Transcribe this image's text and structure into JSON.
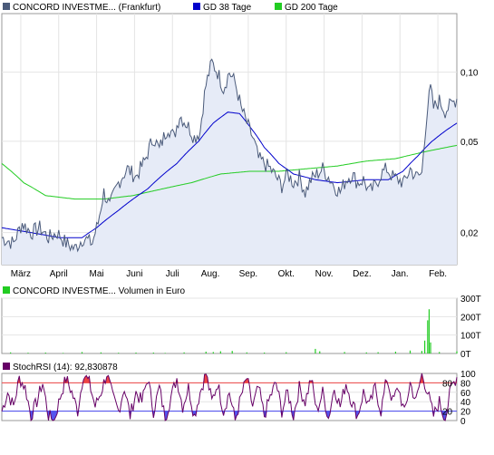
{
  "chart_data": [
    {
      "type": "line",
      "legend": [
        {
          "label": "CONCORD INVESTME... (Frankfurt)",
          "color": "#4a5a7a"
        },
        {
          "label": "GD 38 Tage",
          "color": "#0000cc"
        },
        {
          "label": "GD 200 Tage",
          "color": "#22cc22"
        }
      ],
      "months": [
        "März",
        "April",
        "Mai",
        "Juni",
        "Juli",
        "Aug.",
        "Sep.",
        "Okt.",
        "Nov.",
        "Dez.",
        "Jan.",
        "Feb."
      ],
      "y_ticks": [
        "0,10",
        "0,05",
        "0,02"
      ],
      "y_tick_values": [
        0.1,
        0.05,
        0.02
      ],
      "y_scale": "log",
      "ylim": [
        0.0145,
        0.18
      ],
      "grid": true,
      "legend_position": "top",
      "series": [
        {
          "name": "CONCORD INVESTME... (Frankfurt)",
          "color": "#4a5a7a",
          "anchors": [
            [
              0,
              0.019
            ],
            [
              8,
              0.018
            ],
            [
              14,
              0.022
            ],
            [
              20,
              0.02
            ],
            [
              26,
              0.021
            ],
            [
              32,
              0.019
            ],
            [
              38,
              0.02
            ],
            [
              44,
              0.018
            ],
            [
              50,
              0.017
            ],
            [
              56,
              0.019
            ],
            [
              62,
              0.018
            ],
            [
              66,
              0.022
            ],
            [
              70,
              0.03
            ],
            [
              74,
              0.026
            ],
            [
              80,
              0.033
            ],
            [
              86,
              0.038
            ],
            [
              92,
              0.035
            ],
            [
              98,
              0.041
            ],
            [
              104,
              0.052
            ],
            [
              108,
              0.046
            ],
            [
              114,
              0.058
            ],
            [
              118,
              0.052
            ],
            [
              122,
              0.065
            ],
            [
              128,
              0.058
            ],
            [
              132,
              0.052
            ],
            [
              136,
              0.055
            ],
            [
              140,
              0.088
            ],
            [
              144,
              0.11
            ],
            [
              148,
              0.1
            ],
            [
              152,
              0.085
            ],
            [
              156,
              0.1
            ],
            [
              160,
              0.09
            ],
            [
              164,
              0.07
            ],
            [
              168,
              0.06
            ],
            [
              172,
              0.052
            ],
            [
              176,
              0.042
            ],
            [
              180,
              0.04
            ],
            [
              184,
              0.038
            ],
            [
              188,
              0.035
            ],
            [
              192,
              0.032
            ],
            [
              196,
              0.036
            ],
            [
              200,
              0.033
            ],
            [
              204,
              0.035
            ],
            [
              208,
              0.03
            ],
            [
              212,
              0.034
            ],
            [
              216,
              0.036
            ],
            [
              220,
              0.038
            ],
            [
              224,
              0.035
            ],
            [
              228,
              0.032
            ],
            [
              232,
              0.03
            ],
            [
              236,
              0.034
            ],
            [
              240,
              0.036
            ],
            [
              244,
              0.033
            ],
            [
              248,
              0.034
            ],
            [
              252,
              0.03
            ],
            [
              256,
              0.032
            ],
            [
              260,
              0.036
            ],
            [
              264,
              0.038
            ],
            [
              268,
              0.035
            ],
            [
              272,
              0.034
            ],
            [
              276,
              0.033
            ],
            [
              280,
              0.038
            ],
            [
              284,
              0.035
            ],
            [
              288,
              0.036
            ],
            [
              292,
              0.07
            ],
            [
              294,
              0.085
            ],
            [
              296,
              0.07
            ],
            [
              300,
              0.075
            ],
            [
              304,
              0.068
            ],
            [
              308,
              0.072
            ],
            [
              312,
              0.077
            ]
          ]
        },
        {
          "name": "GD 38 Tage",
          "color": "#0000cc",
          "anchors": [
            [
              0,
              0.021
            ],
            [
              20,
              0.02
            ],
            [
              40,
              0.019
            ],
            [
              55,
              0.019
            ],
            [
              65,
              0.021
            ],
            [
              80,
              0.025
            ],
            [
              100,
              0.031
            ],
            [
              120,
              0.04
            ],
            [
              135,
              0.05
            ],
            [
              145,
              0.06
            ],
            [
              155,
              0.067
            ],
            [
              163,
              0.066
            ],
            [
              170,
              0.058
            ],
            [
              180,
              0.047
            ],
            [
              190,
              0.04
            ],
            [
              200,
              0.036
            ],
            [
              215,
              0.034
            ],
            [
              230,
              0.033
            ],
            [
              250,
              0.034
            ],
            [
              265,
              0.034
            ],
            [
              275,
              0.037
            ],
            [
              285,
              0.043
            ],
            [
              295,
              0.05
            ],
            [
              305,
              0.056
            ],
            [
              312,
              0.06
            ]
          ]
        },
        {
          "name": "GD 200 Tage",
          "color": "#22cc22",
          "anchors": [
            [
              0,
              0.04
            ],
            [
              15,
              0.033
            ],
            [
              30,
              0.029
            ],
            [
              50,
              0.028
            ],
            [
              70,
              0.028
            ],
            [
              90,
              0.029
            ],
            [
              110,
              0.031
            ],
            [
              130,
              0.033
            ],
            [
              150,
              0.036
            ],
            [
              170,
              0.037
            ],
            [
              190,
              0.037
            ],
            [
              210,
              0.038
            ],
            [
              230,
              0.039
            ],
            [
              250,
              0.041
            ],
            [
              270,
              0.042
            ],
            [
              290,
              0.045
            ],
            [
              312,
              0.048
            ]
          ]
        }
      ]
    },
    {
      "type": "bar",
      "legend": [
        {
          "label": "CONCORD INVESTME... Volumen in Euro",
          "color": "#22cc22"
        }
      ],
      "y_ticks": [
        "300T",
        "200T",
        "100T",
        "0T"
      ],
      "y_tick_values": [
        300000,
        200000,
        100000,
        0
      ],
      "ylim": [
        0,
        300000
      ],
      "values": [
        [
          6,
          6000
        ],
        [
          18,
          4000
        ],
        [
          30,
          5000
        ],
        [
          42,
          3000
        ],
        [
          55,
          8000
        ],
        [
          68,
          6000
        ],
        [
          80,
          4000
        ],
        [
          92,
          5000
        ],
        [
          104,
          5000
        ],
        [
          112,
          3000
        ],
        [
          125,
          6000
        ],
        [
          140,
          10000
        ],
        [
          145,
          8000
        ],
        [
          150,
          12000
        ],
        [
          158,
          14000
        ],
        [
          168,
          6000
        ],
        [
          180,
          5000
        ],
        [
          195,
          7000
        ],
        [
          215,
          25000
        ],
        [
          218,
          12000
        ],
        [
          235,
          8000
        ],
        [
          250,
          6000
        ],
        [
          258,
          7000
        ],
        [
          270,
          10000
        ],
        [
          280,
          16000
        ],
        [
          288,
          14000
        ],
        [
          290,
          70000
        ],
        [
          292,
          180000
        ],
        [
          293,
          240000
        ],
        [
          294,
          60000
        ],
        [
          300,
          8000
        ],
        [
          312,
          12000
        ]
      ]
    },
    {
      "type": "line",
      "legend": [
        {
          "label": "StochRSI (14): 92,830878",
          "color": "#660066"
        }
      ],
      "y_ticks": [
        "100",
        "80",
        "60",
        "40",
        "20",
        "0"
      ],
      "y_tick_values": [
        100,
        80,
        60,
        40,
        20,
        0
      ],
      "right_markers": [
        "80",
        "20"
      ],
      "thresholds": [
        80,
        20
      ],
      "ylim": [
        0,
        100
      ],
      "series": [
        {
          "name": "StochRSI (14)",
          "color": "#660066",
          "anchors": [
            [
              0,
              20
            ],
            [
              4,
              60
            ],
            [
              8,
              30
            ],
            [
              12,
              90
            ],
            [
              16,
              70
            ],
            [
              20,
              10
            ],
            [
              24,
              40
            ],
            [
              28,
              80
            ],
            [
              32,
              10
            ],
            [
              36,
              0
            ],
            [
              40,
              50
            ],
            [
              44,
              90
            ],
            [
              48,
              60
            ],
            [
              52,
              20
            ],
            [
              56,
              100
            ],
            [
              60,
              80
            ],
            [
              64,
              30
            ],
            [
              68,
              60
            ],
            [
              72,
              100
            ],
            [
              76,
              50
            ],
            [
              80,
              20
            ],
            [
              84,
              70
            ],
            [
              88,
              10
            ],
            [
              92,
              60
            ],
            [
              96,
              40
            ],
            [
              100,
              90
            ],
            [
              104,
              20
            ],
            [
              108,
              70
            ],
            [
              112,
              5
            ],
            [
              116,
              50
            ],
            [
              120,
              90
            ],
            [
              124,
              30
            ],
            [
              128,
              70
            ],
            [
              132,
              10
            ],
            [
              136,
              60
            ],
            [
              140,
              100
            ],
            [
              144,
              40
            ],
            [
              148,
              80
            ],
            [
              152,
              20
            ],
            [
              156,
              60
            ],
            [
              160,
              0
            ],
            [
              164,
              50
            ],
            [
              168,
              90
            ],
            [
              172,
              30
            ],
            [
              176,
              70
            ],
            [
              180,
              10
            ],
            [
              184,
              50
            ],
            [
              188,
              80
            ],
            [
              192,
              20
            ],
            [
              196,
              60
            ],
            [
              200,
              10
            ],
            [
              204,
              70
            ],
            [
              208,
              40
            ],
            [
              212,
              90
            ],
            [
              216,
              20
            ],
            [
              220,
              60
            ],
            [
              224,
              5
            ],
            [
              228,
              70
            ],
            [
              232,
              30
            ],
            [
              236,
              80
            ],
            [
              240,
              40
            ],
            [
              244,
              10
            ],
            [
              248,
              60
            ],
            [
              252,
              30
            ],
            [
              256,
              70
            ],
            [
              260,
              20
            ],
            [
              264,
              90
            ],
            [
              268,
              40
            ],
            [
              272,
              70
            ],
            [
              276,
              15
            ],
            [
              280,
              80
            ],
            [
              284,
              40
            ],
            [
              288,
              100
            ],
            [
              292,
              60
            ],
            [
              296,
              10
            ],
            [
              300,
              40
            ],
            [
              304,
              0
            ],
            [
              308,
              70
            ],
            [
              312,
              93
            ]
          ]
        }
      ]
    }
  ]
}
